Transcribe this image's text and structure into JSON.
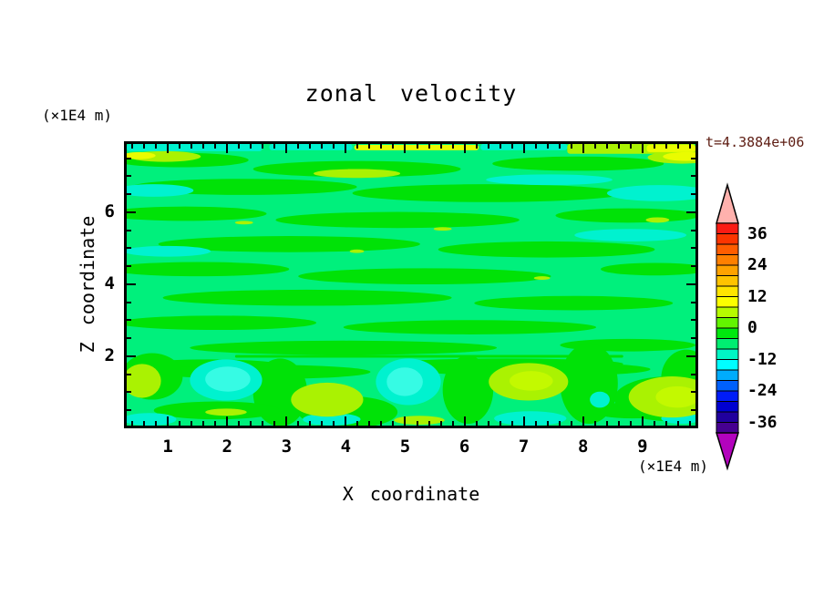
{
  "figure": {
    "title": "zonal velocity",
    "time_stamp": "t=4.3884e+06",
    "x_axis_label": "X coordinate",
    "y_axis_label": "Z coordinate",
    "x_axis_units": "(×1E4 m)",
    "y_axis_units": "(×1E4 m)"
  },
  "colors": {
    "background": "#ffffff",
    "frame_and_text": "#000000",
    "time_stamp_text": "#5d1c12",
    "field": {
      "spring_green_background": "#00f07c",
      "green_bands": "#00e207",
      "turquoise": "#00f2cf",
      "cyan": "#36fbe4",
      "chartreuse": "#aaf202",
      "bright_chartreuse": "#c3f900",
      "yellow": "#eafc00"
    }
  },
  "chart_data": {
    "type": "filled_contour",
    "title": "zonal velocity",
    "time_label": "t=4.3884e+06",
    "x_axis": {
      "label": "X coordinate",
      "units": "(×1E4 m)",
      "range": [
        0.26,
        9.94
      ],
      "major_ticks": [
        1,
        2,
        3,
        4,
        5,
        6,
        7,
        8,
        9
      ],
      "minor_tick_step": 0.2,
      "ticks_point_inward": true
    },
    "y_axis": {
      "label": "Z coordinate",
      "units": "(×1E4 m)",
      "range": [
        0,
        7.97
      ],
      "major_ticks": [
        2,
        4,
        6
      ],
      "minor_tick_step": 0.5,
      "ticks_point_inward": true
    },
    "colorbar": {
      "position": "right",
      "range": [
        -40,
        40
      ],
      "segment_step": 4,
      "tick_labels": [
        "36",
        "24",
        "12",
        "0",
        "-12",
        "-24",
        "-36"
      ],
      "segment_colors_top_to_bottom": [
        "#fb1b14",
        "#fc3500",
        "#ff5d00",
        "#ff8000",
        "#ffa200",
        "#ffc300",
        "#ffe400",
        "#fcff00",
        "#b6fb00",
        "#62f400",
        "#00e80e",
        "#00ee71",
        "#00f6c4",
        "#00feff",
        "#00acfc",
        "#0060fc",
        "#001cf8",
        "#0000d0",
        "#20009e",
        "#460091"
      ],
      "over_range_arrow_color": "#ffb1ad",
      "under_range_arrow_color": "#b303bd"
    },
    "field_summary": "Velocity field dominated by interleaved horizontal bands of green (≈ -4 to 0) and spring green (≈ -8 to -4). A thin turquoise/cyan band with yellow patches runs along the top edge (z ≈ 7.9). Below z ≈ 2 a row of alternating cyan minima and chartreuse maxima blobs sits above the bottom boundary.",
    "features": [
      {
        "kind": "high_chartreuse_blob",
        "x": 0.45,
        "z": 1.3,
        "value_range": [
          4,
          8
        ]
      },
      {
        "kind": "low_cyan_blob",
        "x": 1.95,
        "z": 1.3,
        "value_range": [
          -16,
          -8
        ]
      },
      {
        "kind": "high_chartreuse_blob",
        "x": 3.65,
        "z": 0.75,
        "value_range": [
          4,
          8
        ]
      },
      {
        "kind": "low_cyan_blob",
        "x": 5.0,
        "z": 1.25,
        "value_range": [
          -16,
          -8
        ]
      },
      {
        "kind": "high_chartreuse_blob",
        "x": 7.1,
        "z": 1.25,
        "value_range": [
          4,
          12
        ]
      },
      {
        "kind": "low_turquoise_spot",
        "x": 8.3,
        "z": 0.7,
        "value_range": [
          -12,
          -8
        ]
      },
      {
        "kind": "high_chartreuse_blob",
        "x": 9.55,
        "z": 0.8,
        "value_range": [
          4,
          12
        ]
      },
      {
        "kind": "yellow_streaks_top_edge",
        "x_range": [
          4.1,
          6.2
        ],
        "z": 7.9,
        "value_range": [
          8,
          12
        ]
      },
      {
        "kind": "yellow_chartreuse_top_right_edge",
        "x_range": [
          7.7,
          9.9
        ],
        "z": 7.85,
        "value_range": [
          4,
          12
        ]
      },
      {
        "kind": "cyan_band_top_edge",
        "x_range": [
          0.3,
          7.5
        ],
        "z": 7.9,
        "value_range": [
          -16,
          -8
        ]
      }
    ]
  }
}
